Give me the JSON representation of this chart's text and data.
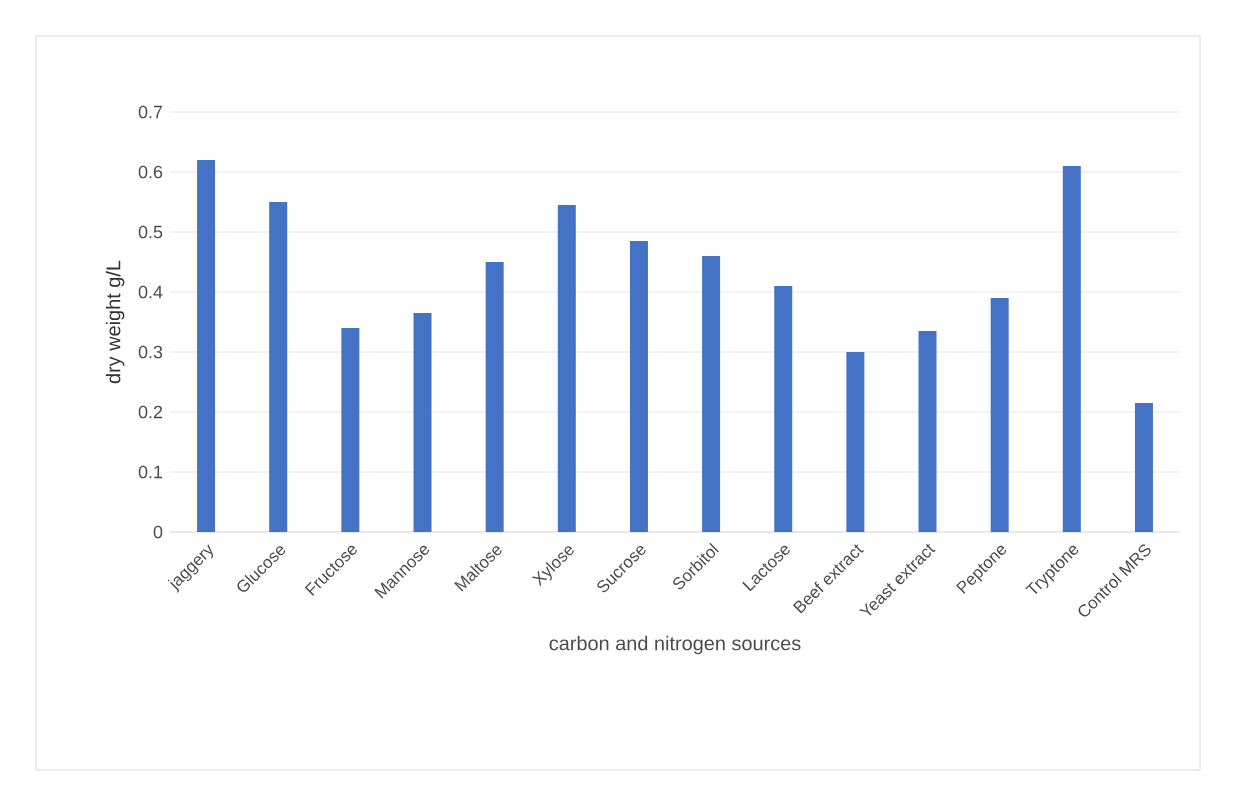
{
  "chart_data": {
    "type": "bar",
    "xlabel": "carbon and nitrogen sources",
    "ylabel": "dry weight g/L",
    "categories": [
      "jaggery",
      "Glucose",
      "Fructose",
      "Mannose",
      "Maltose",
      "Xylose",
      "Sucrose",
      "Sorbitol",
      "Lactose",
      "Beef extract",
      "Yeast extract",
      "Peptone",
      "Tryptone",
      "Control MRS"
    ],
    "values": [
      0.62,
      0.55,
      0.34,
      0.365,
      0.45,
      0.545,
      0.485,
      0.46,
      0.41,
      0.3,
      0.335,
      0.39,
      0.61,
      0.215
    ],
    "color": "#4472c4",
    "ylim": [
      0,
      0.7
    ],
    "yticks": [
      0,
      0.1,
      0.2,
      0.3,
      0.4,
      0.5,
      0.6,
      0.7
    ],
    "grid": "y"
  }
}
